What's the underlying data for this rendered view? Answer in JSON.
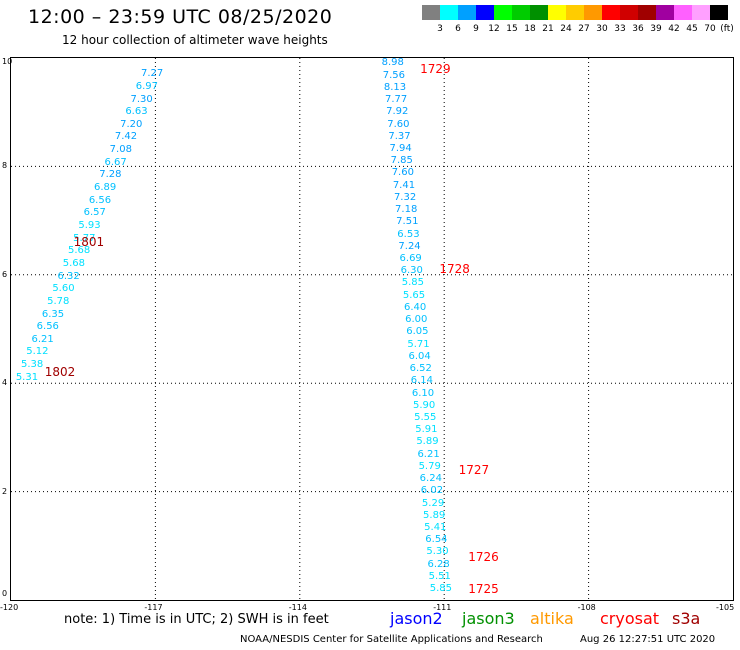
{
  "header": {
    "title": "12:00 – 23:59 UTC 08/25/2020",
    "subtitle": "12 hour collection of altimeter wave heights"
  },
  "legend": {
    "unit": "(ft)",
    "swatches": [
      {
        "color": "#808080",
        "label": "3"
      },
      {
        "color": "#00ffff",
        "label": "6"
      },
      {
        "color": "#00a0ff",
        "label": "9"
      },
      {
        "color": "#0000ff",
        "label": "12"
      },
      {
        "color": "#00ff00",
        "label": "15"
      },
      {
        "color": "#00cc00",
        "label": "18"
      },
      {
        "color": "#009000",
        "label": "21"
      },
      {
        "color": "#ffff00",
        "label": "24"
      },
      {
        "color": "#ffcc00",
        "label": "27"
      },
      {
        "color": "#ff9900",
        "label": "30"
      },
      {
        "color": "#ff0000",
        "label": "33"
      },
      {
        "color": "#d00000",
        "label": "36"
      },
      {
        "color": "#a00000",
        "label": "39"
      },
      {
        "color": "#a000a0",
        "label": "42"
      },
      {
        "color": "#ff60ff",
        "label": "45"
      },
      {
        "color": "#ffa0ff",
        "label": "70"
      },
      {
        "color": "#000000",
        "label": ""
      }
    ]
  },
  "map": {
    "lon_range": [
      -120,
      -105
    ],
    "lat_range": [
      0,
      10
    ],
    "x_ticks": [
      "-120",
      "-117",
      "-114",
      "-111",
      "-108",
      "-105"
    ],
    "x_tick_values": [
      -120,
      -117,
      -114,
      -111,
      -108,
      -105
    ],
    "y_ticks": [
      "0",
      "2",
      "4",
      "6",
      "8",
      "10"
    ],
    "y_tick_values": [
      0,
      2,
      4,
      6,
      8,
      10
    ],
    "grid": true
  },
  "tracks": [
    {
      "name": "west",
      "lon_top": -117.3,
      "lat_top": 9.7,
      "lon_bottom": -119.9,
      "lat_bottom": 4.1,
      "points": [
        {
          "v": "7.27",
          "c": "#00a0ff"
        },
        {
          "v": "6.97",
          "c": "#00c0ff"
        },
        {
          "v": "7.30",
          "c": "#00a0ff"
        },
        {
          "v": "6.63",
          "c": "#00c0ff"
        },
        {
          "v": "7.20",
          "c": "#00a0ff"
        },
        {
          "v": "7.42",
          "c": "#00a0ff"
        },
        {
          "v": "7.08",
          "c": "#00a0ff"
        },
        {
          "v": "6.67",
          "c": "#00c0ff"
        },
        {
          "v": "7.28",
          "c": "#00a0ff"
        },
        {
          "v": "6.89",
          "c": "#00c0ff"
        },
        {
          "v": "6.56",
          "c": "#00c0ff"
        },
        {
          "v": "6.57",
          "c": "#00c0ff"
        },
        {
          "v": "5.93",
          "c": "#00e0ff"
        },
        {
          "v": "5.77",
          "c": "#00e0ff"
        },
        {
          "v": "5.68",
          "c": "#00e0ff"
        },
        {
          "v": "5.68",
          "c": "#00e0ff"
        },
        {
          "v": "6.32",
          "c": "#00c0ff"
        },
        {
          "v": "5.60",
          "c": "#00e0ff"
        },
        {
          "v": "5.78",
          "c": "#00e0ff"
        },
        {
          "v": "6.35",
          "c": "#00c0ff"
        },
        {
          "v": "6.56",
          "c": "#00c0ff"
        },
        {
          "v": "6.21",
          "c": "#00c0ff"
        },
        {
          "v": "5.12",
          "c": "#00e0ff"
        },
        {
          "v": "5.38",
          "c": "#00e0ff"
        },
        {
          "v": "5.31",
          "c": "#00e0ff"
        }
      ],
      "times": [
        {
          "t": "1801",
          "lon": -118.7,
          "lat": 6.6,
          "c": "#a00000"
        },
        {
          "t": "1802",
          "lon": -119.3,
          "lat": 4.2,
          "c": "#a00000"
        }
      ]
    },
    {
      "name": "east",
      "lon_top": -112.3,
      "lat_top": 9.9,
      "lon_bottom": -111.3,
      "lat_bottom": 0.2,
      "points": [
        {
          "v": "8.98",
          "c": "#00a0ff"
        },
        {
          "v": "7.56",
          "c": "#00a0ff"
        },
        {
          "v": "8.13",
          "c": "#00a0ff"
        },
        {
          "v": "7.77",
          "c": "#00a0ff"
        },
        {
          "v": "7.92",
          "c": "#00a0ff"
        },
        {
          "v": "7.60",
          "c": "#00a0ff"
        },
        {
          "v": "7.37",
          "c": "#00a0ff"
        },
        {
          "v": "7.94",
          "c": "#00a0ff"
        },
        {
          "v": "7.85",
          "c": "#00a0ff"
        },
        {
          "v": "7.60",
          "c": "#00a0ff"
        },
        {
          "v": "7.41",
          "c": "#00a0ff"
        },
        {
          "v": "7.32",
          "c": "#00a0ff"
        },
        {
          "v": "7.18",
          "c": "#00a0ff"
        },
        {
          "v": "7.51",
          "c": "#00a0ff"
        },
        {
          "v": "6.53",
          "c": "#00c0ff"
        },
        {
          "v": "7.24",
          "c": "#00a0ff"
        },
        {
          "v": "6.69",
          "c": "#00c0ff"
        },
        {
          "v": "6.30",
          "c": "#00c0ff"
        },
        {
          "v": "5.85",
          "c": "#00e0ff"
        },
        {
          "v": "5.65",
          "c": "#00e0ff"
        },
        {
          "v": "6.40",
          "c": "#00c0ff"
        },
        {
          "v": "6.00",
          "c": "#00c0ff"
        },
        {
          "v": "6.05",
          "c": "#00c0ff"
        },
        {
          "v": "5.71",
          "c": "#00e0ff"
        },
        {
          "v": "6.04",
          "c": "#00c0ff"
        },
        {
          "v": "6.52",
          "c": "#00c0ff"
        },
        {
          "v": "6.14",
          "c": "#00c0ff"
        },
        {
          "v": "6.10",
          "c": "#00c0ff"
        },
        {
          "v": "5.90",
          "c": "#00e0ff"
        },
        {
          "v": "5.55",
          "c": "#00e0ff"
        },
        {
          "v": "5.91",
          "c": "#00e0ff"
        },
        {
          "v": "5.89",
          "c": "#00e0ff"
        },
        {
          "v": "6.21",
          "c": "#00c0ff"
        },
        {
          "v": "5.79",
          "c": "#00e0ff"
        },
        {
          "v": "6.24",
          "c": "#00c0ff"
        },
        {
          "v": "6.02",
          "c": "#00c0ff"
        },
        {
          "v": "5.29",
          "c": "#00e0ff"
        },
        {
          "v": "5.89",
          "c": "#00e0ff"
        },
        {
          "v": "5.41",
          "c": "#00e0ff"
        },
        {
          "v": "6.54",
          "c": "#00c0ff"
        },
        {
          "v": "5.30",
          "c": "#00e0ff"
        },
        {
          "v": "6.28",
          "c": "#00c0ff"
        },
        {
          "v": "5.51",
          "c": "#00e0ff"
        },
        {
          "v": "5.85",
          "c": "#00e0ff"
        }
      ],
      "times": [
        {
          "t": "1729",
          "lon": -111.5,
          "lat": 9.8,
          "c": "#ff0000"
        },
        {
          "t": "1728",
          "lon": -111.1,
          "lat": 6.1,
          "c": "#ff0000"
        },
        {
          "t": "1727",
          "lon": -110.7,
          "lat": 2.4,
          "c": "#ff0000"
        },
        {
          "t": "1726",
          "lon": -110.5,
          "lat": 0.8,
          "c": "#ff0000"
        },
        {
          "t": "1725",
          "lon": -110.5,
          "lat": 0.2,
          "c": "#ff0000"
        }
      ]
    }
  ],
  "footer": {
    "note": "note:  1) Time is in UTC;  2) SWH is in feet",
    "satellites": [
      {
        "name": "jason2",
        "color": "#0000ff"
      },
      {
        "name": "jason3",
        "color": "#009000"
      },
      {
        "name": "altika",
        "color": "#ff9900"
      },
      {
        "name": "cryosat",
        "color": "#ff0000"
      },
      {
        "name": "s3a",
        "color": "#a00000"
      }
    ],
    "credit": "NOAA/NESDIS Center for Satellite Applications and Research",
    "timestamp": "Aug 26 12:27:51 UTC 2020"
  }
}
